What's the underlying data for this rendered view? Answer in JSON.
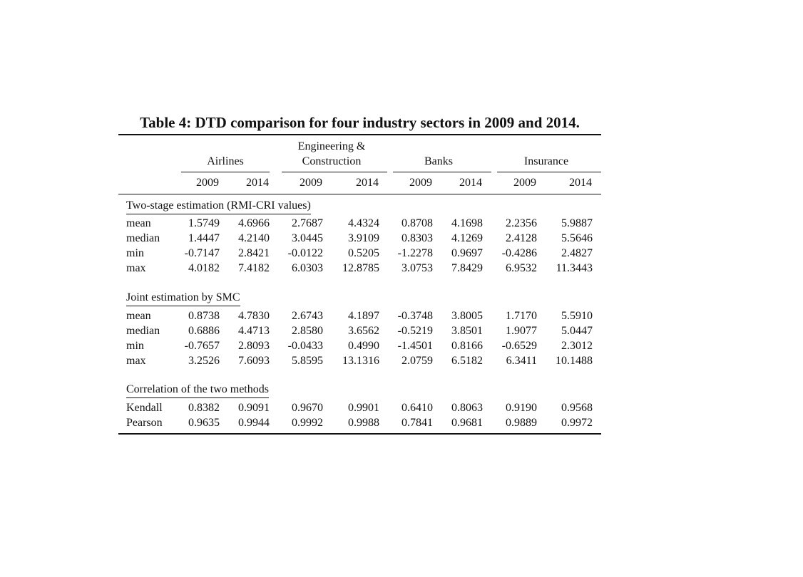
{
  "caption": "Table 4: DTD comparison for four industry sectors in 2009 and 2014.",
  "groups": [
    {
      "line1": "",
      "line2": "Airlines"
    },
    {
      "line1": "Engineering &",
      "line2": "Construction"
    },
    {
      "line1": "",
      "line2": "Banks"
    },
    {
      "line1": "",
      "line2": "Insurance"
    }
  ],
  "years": [
    "2009",
    "2014",
    "2009",
    "2014",
    "2009",
    "2014",
    "2009",
    "2014"
  ],
  "sections": [
    {
      "title": "Two-stage estimation (RMI-CRI values)",
      "rows": [
        {
          "label": "mean",
          "values": [
            "1.5749",
            "4.6966",
            "2.7687",
            "4.4324",
            "0.8708",
            "4.1698",
            "2.2356",
            "5.9887"
          ]
        },
        {
          "label": "median",
          "values": [
            "1.4447",
            "4.2140",
            "3.0445",
            "3.9109",
            "0.8303",
            "4.1269",
            "2.4128",
            "5.5646"
          ]
        },
        {
          "label": "min",
          "values": [
            "-0.7147",
            "2.8421",
            "-0.0122",
            "0.5205",
            "-1.2278",
            "0.9697",
            "-0.4286",
            "2.4827"
          ]
        },
        {
          "label": "max",
          "values": [
            "4.0182",
            "7.4182",
            "6.0303",
            "12.8785",
            "3.0753",
            "7.8429",
            "6.9532",
            "11.3443"
          ]
        }
      ]
    },
    {
      "title": "Joint estimation by SMC",
      "rows": [
        {
          "label": "mean",
          "values": [
            "0.8738",
            "4.7830",
            "2.6743",
            "4.1897",
            "-0.3748",
            "3.8005",
            "1.7170",
            "5.5910"
          ]
        },
        {
          "label": "median",
          "values": [
            "0.6886",
            "4.4713",
            "2.8580",
            "3.6562",
            "-0.5219",
            "3.8501",
            "1.9077",
            "5.0447"
          ]
        },
        {
          "label": "min",
          "values": [
            "-0.7657",
            "2.8093",
            "-0.0433",
            "0.4990",
            "-1.4501",
            "0.8166",
            "-0.6529",
            "2.3012"
          ]
        },
        {
          "label": "max",
          "values": [
            "3.2526",
            "7.6093",
            "5.8595",
            "13.1316",
            "2.0759",
            "6.5182",
            "6.3411",
            "10.1488"
          ]
        }
      ]
    },
    {
      "title": "Correlation of the two methods",
      "rows": [
        {
          "label": "Kendall",
          "values": [
            "0.8382",
            "0.9091",
            "0.9670",
            "0.9901",
            "0.6410",
            "0.8063",
            "0.9190",
            "0.9568"
          ]
        },
        {
          "label": "Pearson",
          "values": [
            "0.9635",
            "0.9944",
            "0.9992",
            "0.9988",
            "0.7841",
            "0.9681",
            "0.9889",
            "0.9972"
          ]
        }
      ]
    }
  ]
}
